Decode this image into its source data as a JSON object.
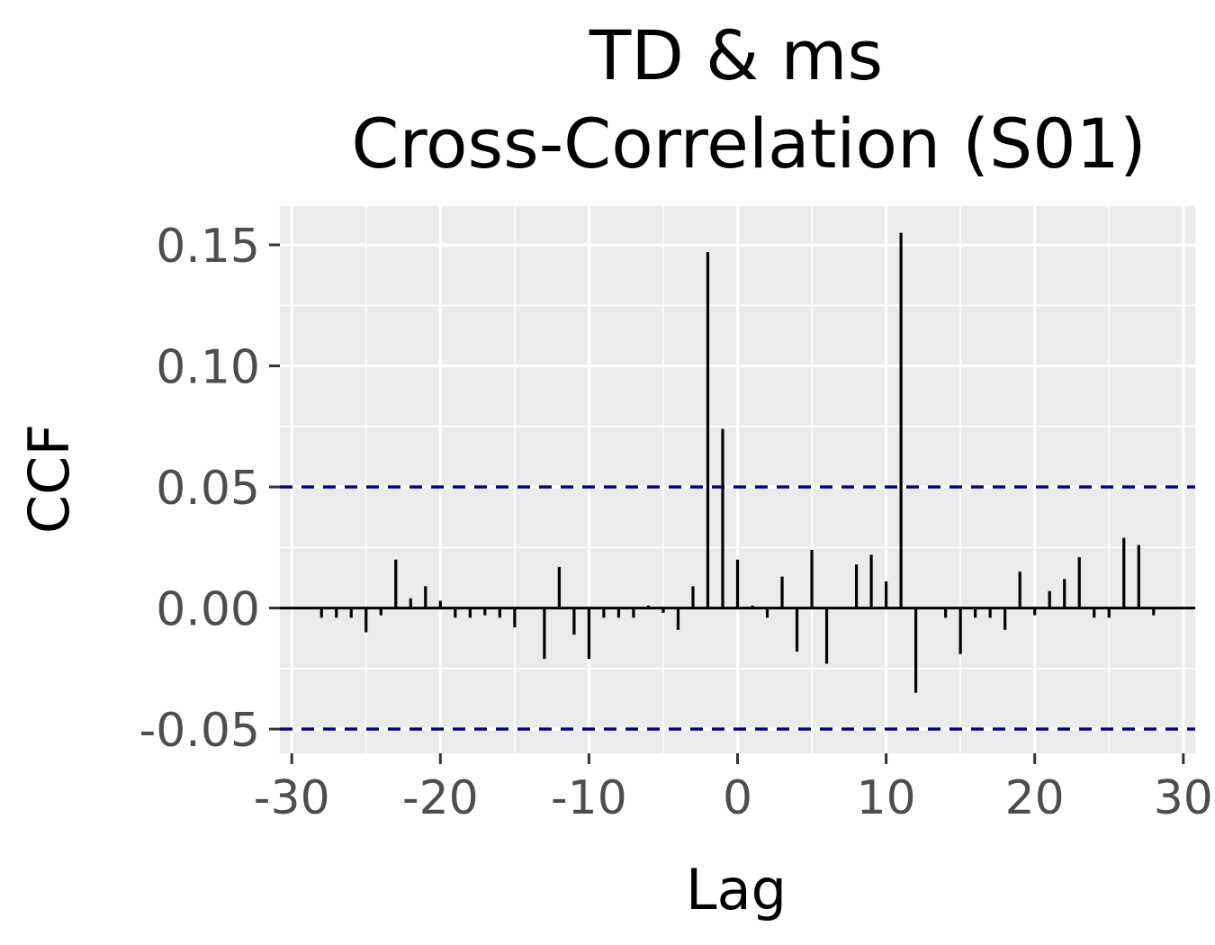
{
  "chart_data": {
    "type": "bar",
    "title_line1": "TD & ms",
    "title_line2": "Cross-Correlation (S01)",
    "xlabel": "Lag",
    "ylabel": "CCF",
    "xlim": [
      -30.8,
      30.8
    ],
    "ylim": [
      -0.06,
      0.166
    ],
    "x_ticks": [
      -30,
      -20,
      -10,
      0,
      10,
      20,
      30
    ],
    "x_tick_labels": [
      "-30",
      "-20",
      "-10",
      "0",
      "10",
      "20",
      "30"
    ],
    "y_ticks": [
      -0.05,
      0.0,
      0.05,
      0.1,
      0.15
    ],
    "y_tick_labels": [
      "-0.05",
      "0.00",
      "0.05",
      "0.10",
      "0.15"
    ],
    "confidence_band": [
      -0.05,
      0.05
    ],
    "confidence_band_color": "#00007f",
    "panel_background": "#ebebeb",
    "grid_color": "#ffffff",
    "bar_color": "#000000",
    "grid": true,
    "lags": [
      -28,
      -27,
      -26,
      -25,
      -24,
      -23,
      -22,
      -21,
      -20,
      -19,
      -18,
      -17,
      -16,
      -15,
      -14,
      -13,
      -12,
      -11,
      -10,
      -9,
      -8,
      -7,
      -6,
      -5,
      -4,
      -3,
      -2,
      -1,
      0,
      1,
      2,
      3,
      4,
      5,
      6,
      7,
      8,
      9,
      10,
      11,
      12,
      13,
      14,
      15,
      16,
      17,
      18,
      19,
      20,
      21,
      22,
      23,
      24,
      25,
      26,
      27,
      28
    ],
    "values": [
      -0.004,
      -0.004,
      -0.004,
      -0.01,
      -0.003,
      0.02,
      0.004,
      0.009,
      0.003,
      -0.004,
      -0.004,
      -0.003,
      -0.004,
      -0.008,
      0.0,
      -0.021,
      0.017,
      -0.011,
      -0.021,
      -0.004,
      -0.004,
      -0.004,
      0.001,
      -0.002,
      -0.009,
      0.009,
      0.147,
      0.074,
      0.02,
      0.001,
      -0.004,
      0.013,
      -0.018,
      0.024,
      -0.023,
      0.0,
      0.018,
      0.022,
      0.011,
      0.155,
      -0.035,
      0.0,
      -0.004,
      -0.019,
      -0.004,
      -0.004,
      -0.009,
      0.015,
      -0.003,
      0.007,
      0.012,
      0.021,
      -0.004,
      -0.004,
      0.029,
      0.026,
      -0.003
    ]
  }
}
